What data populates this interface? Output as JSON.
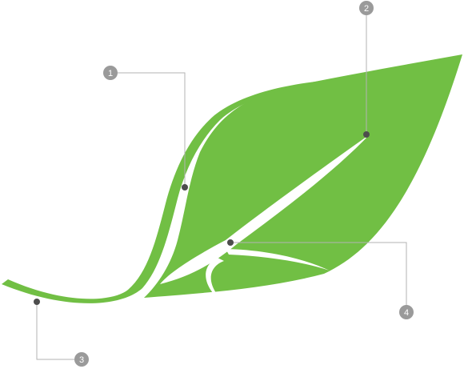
{
  "colors": {
    "leaf": "#71bf44",
    "background": "#ffffff",
    "leader_line": "#b3b3b3",
    "marker": "#4d4d4d",
    "badge": "#9a9a9a",
    "badge_text": "#ffffff"
  },
  "callouts": [
    {
      "label": "1"
    },
    {
      "label": "2"
    },
    {
      "label": "3"
    },
    {
      "label": "4"
    }
  ]
}
